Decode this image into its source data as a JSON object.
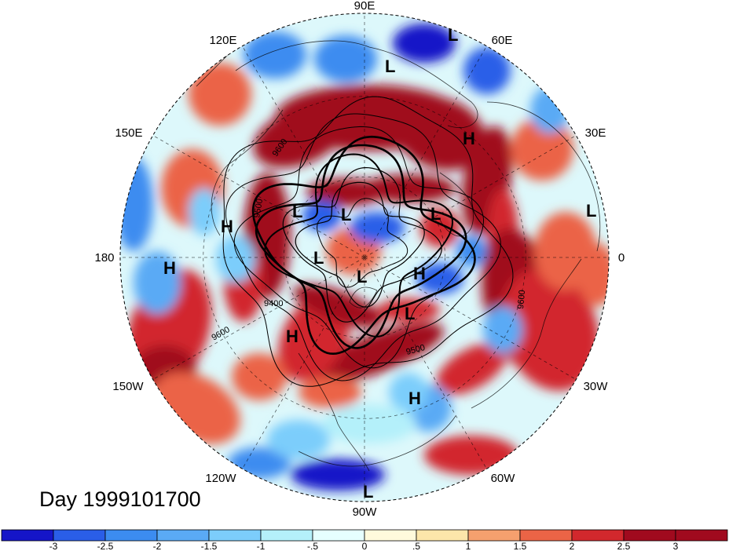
{
  "title": "Day 1999101700",
  "longitude_labels": [
    "90E",
    "60E",
    "30E",
    "0",
    "30W",
    "60W",
    "90W",
    "120W",
    "150W",
    "180",
    "150E",
    "120E"
  ],
  "pressure_systems": [
    "L",
    "L",
    "H",
    "L",
    "H",
    "H",
    "L",
    "L",
    "L",
    "L",
    "L",
    "H",
    "L",
    "H",
    "H",
    "L"
  ],
  "contour_labels": [
    "9600",
    "9500",
    "9400",
    "9600",
    "9500",
    "9600"
  ],
  "colorbar": {
    "tick_labels": [
      "-3",
      "-2.5",
      "-2",
      "-1.5",
      "-1",
      "-.5",
      "0",
      ".5",
      "1",
      "1.5",
      "2",
      "2.5",
      "3"
    ],
    "colors": [
      "#1515c8",
      "#2a5ee8",
      "#3c8cf0",
      "#5aaaf5",
      "#7ccdfb",
      "#b4f0fa",
      "#e6ffff",
      "#fffadc",
      "#fce6aa",
      "#f5a06e",
      "#eb6446",
      "#d2282d",
      "#a00a1e",
      "#a00a1e"
    ]
  }
}
